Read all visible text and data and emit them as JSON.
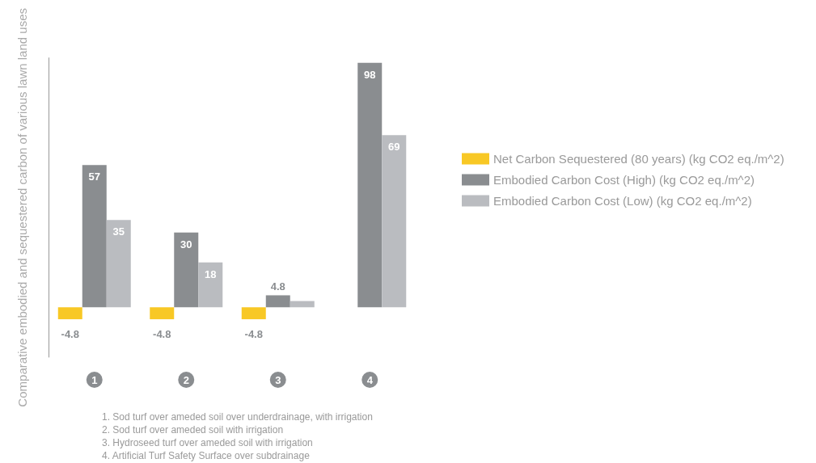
{
  "chart_data": {
    "type": "bar",
    "ylabel": "Comparative embodied and sequestered carbon of various lawn land uses",
    "categories": [
      "1",
      "2",
      "3",
      "4"
    ],
    "series": [
      {
        "name": "Net Carbon Sequestered (80 years) (kg CO2 eq./m^2)",
        "color": "#f8c825",
        "values": [
          -4.8,
          -4.8,
          -4.8,
          null
        ],
        "value_labels": [
          "-4.8",
          "-4.8",
          "-4.8",
          null
        ]
      },
      {
        "name": "Embodied Carbon Cost (High) (kg CO2 eq./m^2)",
        "color": "#8a8d90",
        "values": [
          57,
          30,
          4.8,
          98
        ],
        "value_labels": [
          "57",
          "30",
          "4.8",
          "98"
        ]
      },
      {
        "name": "Embodied Carbon Cost (Low) (kg CO2 eq./m^2)",
        "color": "#babcc0",
        "values": [
          35,
          18,
          2.5,
          69
        ],
        "value_labels": [
          "35",
          "18",
          null,
          "69"
        ]
      }
    ],
    "legend": "right",
    "tick_labels": "x",
    "annotations": [
      "1. Sod turf over ameded soil over underdrainage, with irrigation",
      "2. Sod turf over ameded soil with irrigation",
      "3. Hydroseed turf over ameded soil with irrigation",
      "4. Artificial Turf Safety Surface over subdrainage"
    ]
  }
}
